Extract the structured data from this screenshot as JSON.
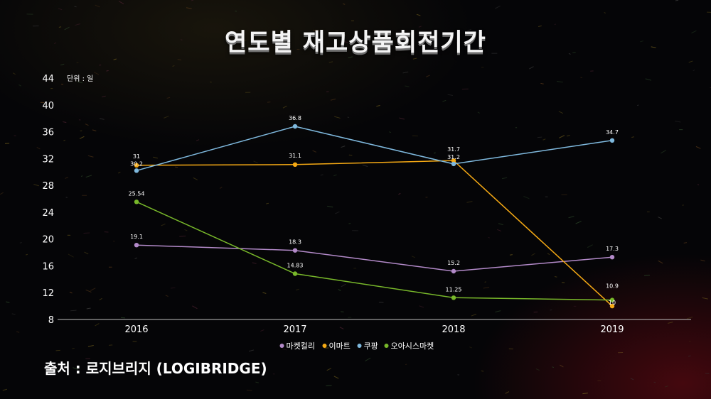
{
  "title": "연도별 재고상품회전기간",
  "source": "출처 : 로지브리지 (LOGIBRIDGE)",
  "chart_data": {
    "type": "line",
    "unit_label": "단위 : 일",
    "x": [
      "2016",
      "2017",
      "2018",
      "2019"
    ],
    "ylim": [
      8,
      44
    ],
    "yticks": [
      8,
      12,
      16,
      20,
      24,
      28,
      32,
      36,
      40,
      44
    ],
    "grid": false,
    "legend_position": "bottom-center",
    "series": [
      {
        "name": "마켓컬리",
        "color": "#b38ac9",
        "values": [
          19.1,
          18.3,
          15.2,
          17.3
        ],
        "labels": [
          "19.1",
          "18.3",
          "15.2",
          "17.3"
        ]
      },
      {
        "name": "이마트",
        "color": "#f5a914",
        "values": [
          31,
          31.1,
          31.7,
          10
        ],
        "labels": [
          "31",
          "31.1",
          "31.7",
          "10"
        ]
      },
      {
        "name": "쿠팡",
        "color": "#7fb9de",
        "values": [
          30.2,
          36.8,
          31.2,
          34.7
        ],
        "labels": [
          "30.2",
          "36.8",
          "31.2",
          "34.7"
        ]
      },
      {
        "name": "오아시스마켓",
        "color": "#78b82a",
        "values": [
          25.54,
          14.83,
          11.25,
          10.9
        ],
        "labels": [
          "25.54",
          "14.83",
          "11.25",
          "10.9"
        ]
      }
    ]
  }
}
